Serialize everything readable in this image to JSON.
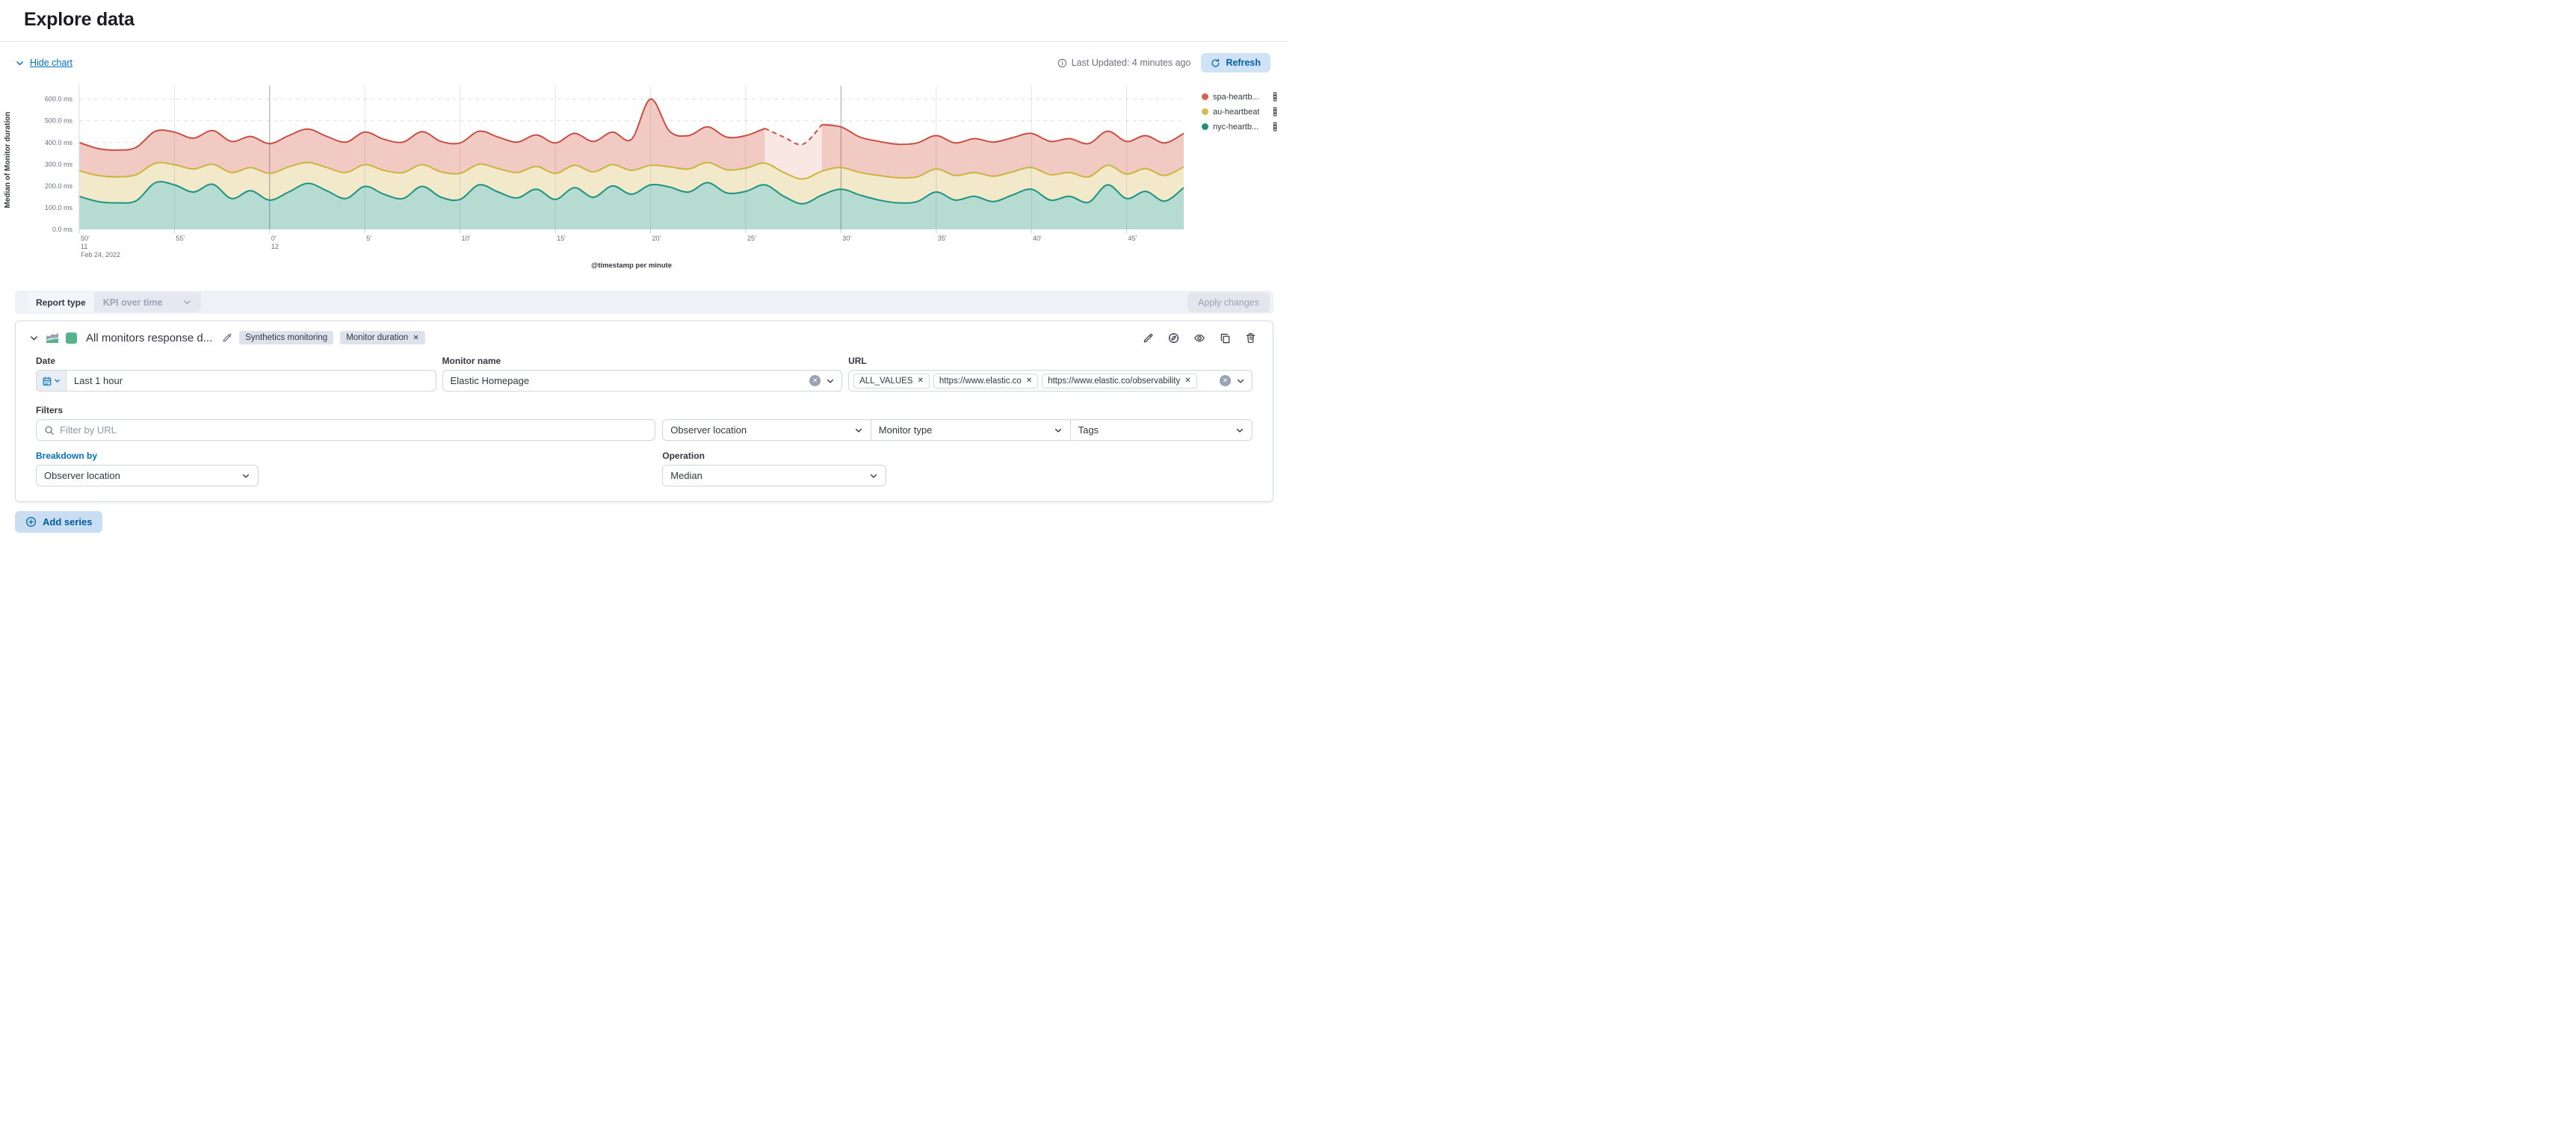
{
  "page": {
    "title": "Explore data"
  },
  "toolbar": {
    "hide_chart": "Hide chart",
    "last_updated": "Last Updated: 4 minutes ago",
    "refresh": "Refresh"
  },
  "report_type": {
    "label": "Report type",
    "value": "KPI over time",
    "apply": "Apply changes"
  },
  "series_panel": {
    "title": "All monitors response d...",
    "badges": [
      "Synthetics monitoring",
      "Monitor duration"
    ],
    "swatch_color": "#55b48e",
    "fields": {
      "date": {
        "label": "Date",
        "value": "Last 1 hour"
      },
      "monitor_name": {
        "label": "Monitor name",
        "value": "Elastic Homepage"
      },
      "url": {
        "label": "URL",
        "chips": [
          "ALL_VALUES",
          "https://www.elastic.co",
          "https://www.elastic.co/observability"
        ]
      }
    },
    "filters": {
      "label": "Filters",
      "search_placeholder": "Filter by URL",
      "dropdowns": [
        "Observer location",
        "Monitor type",
        "Tags"
      ]
    },
    "breakdown": {
      "label": "Breakdown by",
      "value": "Observer location"
    },
    "operation": {
      "label": "Operation",
      "value": "Median"
    }
  },
  "add_series_label": "Add series",
  "chart_data": {
    "type": "area",
    "xlabel": "@timestamp per minute",
    "ylabel": "Median of Monitor duration",
    "y_unit": "ms",
    "ylim": [
      0,
      640
    ],
    "y_tick_values": [
      0,
      100,
      200,
      300,
      400,
      500,
      600
    ],
    "x_start_minute_of_day": "11:50",
    "x_domain_minutes": 58,
    "x_tick_minutes": [
      0,
      5,
      10,
      15,
      20,
      25,
      30,
      35,
      40,
      45,
      50,
      55
    ],
    "x_tick_labels": [
      "50'",
      "55'",
      "0'",
      "5'",
      "10'",
      "15'",
      "20'",
      "25'",
      "30'",
      "35'",
      "40'",
      "45'"
    ],
    "x_tick_sub": {
      "0": "11",
      "2": "12"
    },
    "x_date_label": "Feb 24, 2022",
    "dark_gridlines_minutes": [
      10,
      40
    ],
    "legend_position": "right",
    "grid": true,
    "series": [
      {
        "name": "spa-heartb...",
        "color": "#c94f44",
        "dot_color": "#d9604f",
        "fill": "#f2cac4",
        "gap_start_index": 36,
        "gap_end_index": 39,
        "values": [
          400,
          372,
          365,
          378,
          452,
          448,
          420,
          455,
          405,
          428,
          395,
          432,
          462,
          428,
          402,
          448,
          415,
          402,
          450,
          405,
          398,
          452,
          425,
          402,
          435,
          398,
          442,
          405,
          448,
          415,
          600,
          452,
          432,
          472,
          425,
          432,
          465,
          425,
          392,
          482,
          472,
          425,
          405,
          392,
          398,
          432,
          398,
          418,
          402,
          422,
          442,
          405,
          418,
          395,
          452,
          405,
          432,
          398,
          442
        ]
      },
      {
        "name": "au-heartbeat",
        "color": "#ccb440",
        "dot_color": "#d3bd53",
        "fill": "#f1e9c9",
        "values": [
          270,
          248,
          242,
          252,
          305,
          298,
          278,
          300,
          262,
          285,
          258,
          288,
          308,
          285,
          262,
          298,
          272,
          262,
          298,
          265,
          258,
          300,
          280,
          262,
          290,
          258,
          295,
          265,
          298,
          272,
          295,
          288,
          278,
          308,
          275,
          282,
          305,
          262,
          232,
          268,
          285,
          262,
          248,
          238,
          242,
          278,
          248,
          262,
          245,
          265,
          285,
          252,
          262,
          242,
          295,
          255,
          280,
          248,
          288
        ]
      },
      {
        "name": "nyc-heartb...",
        "color": "#1d9280",
        "dot_color": "#209280",
        "fill": "#b6dcd2",
        "values": [
          152,
          128,
          122,
          132,
          215,
          205,
          172,
          208,
          142,
          178,
          135,
          172,
          212,
          178,
          142,
          198,
          162,
          142,
          198,
          148,
          138,
          205,
          172,
          145,
          185,
          138,
          192,
          148,
          200,
          162,
          205,
          195,
          172,
          215,
          168,
          175,
          205,
          152,
          118,
          158,
          185,
          158,
          135,
          122,
          128,
          172,
          135,
          152,
          128,
          158,
          185,
          135,
          152,
          125,
          205,
          142,
          175,
          130,
          192
        ]
      }
    ]
  }
}
